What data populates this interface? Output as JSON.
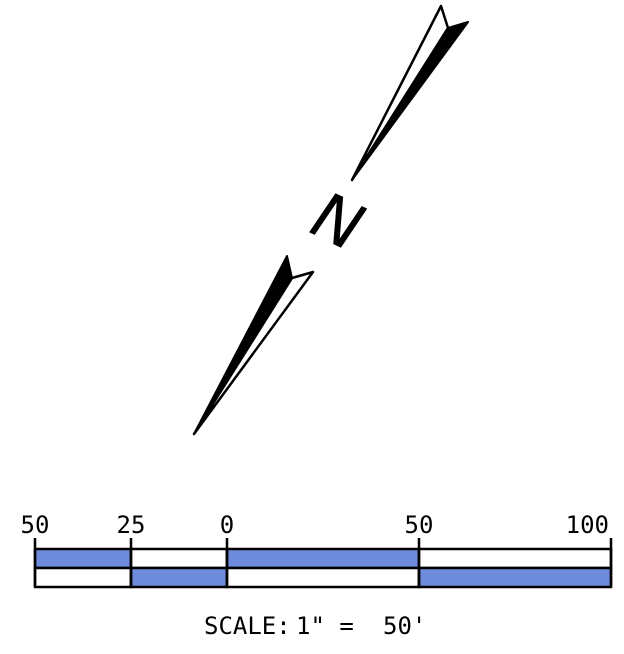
{
  "north_arrow": {
    "letter": "N",
    "icon": "north-arrow-icon"
  },
  "scale_bar": {
    "tick_labels": [
      "50",
      "25",
      "0",
      "50",
      "100"
    ],
    "tick_values": [
      -50,
      -25,
      0,
      50,
      100
    ],
    "fill_color": "#6f8bdc",
    "outline_color": "#000000",
    "top_row_filled": [
      true,
      false,
      true,
      false
    ],
    "bottom_row_filled": [
      false,
      true,
      false,
      true
    ]
  },
  "scale_caption": {
    "prefix": "SCALE:",
    "ratio": "1\" =",
    "value": "50'"
  }
}
